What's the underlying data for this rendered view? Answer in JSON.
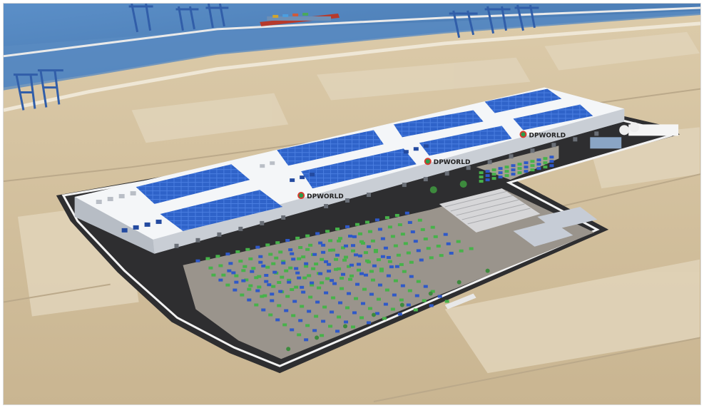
{
  "image": {
    "subject": "aerial-rendering-logistics-park",
    "logo_text": "DPWORLD"
  },
  "colors": {
    "water": "#4f7fb6",
    "sand": "#d8c7a8",
    "roof": "#f4f6f8",
    "solar": "#2f63c9",
    "road": "#2e2e30",
    "yard": "#9a948c",
    "container_green": "#47b24a",
    "container_blue": "#2f59c8",
    "crane": "#315ea9"
  }
}
